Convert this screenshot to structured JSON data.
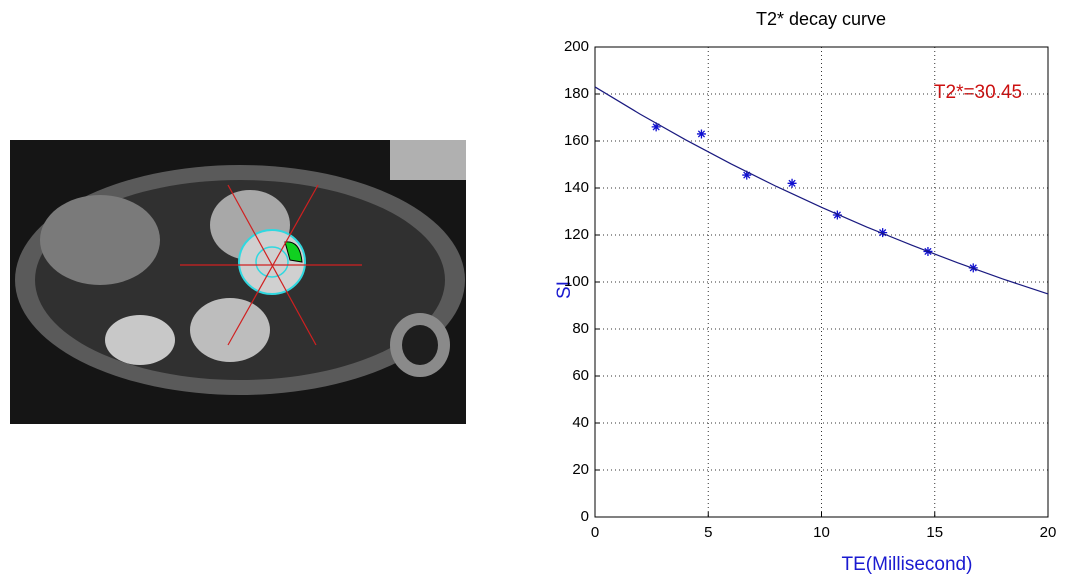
{
  "chart_data": {
    "type": "scatter",
    "title": "T2* decay curve",
    "x_label": "TE(Millisecond)",
    "y_label": "SI",
    "annotation": "T2*=30.45",
    "series": [
      {
        "type": "scatter",
        "marker": "*",
        "color": "#1010d0",
        "x": [
          2.7,
          4.7,
          6.7,
          8.7,
          10.7,
          12.7,
          14.7,
          16.7
        ],
        "values": [
          166,
          163,
          145.5,
          142,
          128.5,
          121,
          113,
          106
        ]
      },
      {
        "type": "line",
        "color": "#1a1a80",
        "x": [
          0,
          2,
          4,
          6,
          8,
          10,
          12,
          14,
          16,
          18,
          20
        ],
        "values": [
          183,
          171.4,
          160.5,
          150.3,
          140.7,
          131.8,
          123.4,
          115.6,
          108.2,
          101.3,
          94.9
        ]
      }
    ],
    "xlim": [
      0,
      20
    ],
    "xticks": [
      0,
      5,
      10,
      15,
      20
    ],
    "ylim": [
      0,
      200
    ],
    "yticks": [
      0,
      20,
      40,
      60,
      80,
      100,
      120,
      140,
      160,
      180,
      200
    ],
    "grid": true,
    "annotation_color": "#cc1010",
    "label_color": "#1a1ad0"
  }
}
